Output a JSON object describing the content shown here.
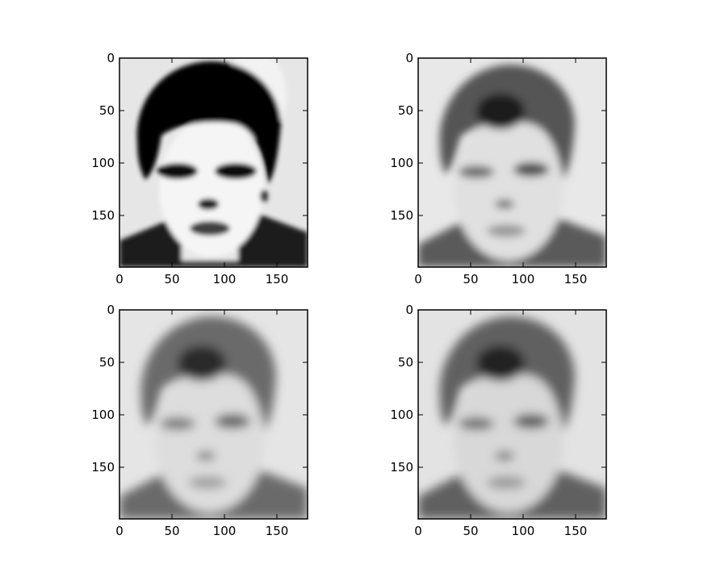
{
  "figure": {
    "background": "#ffffff",
    "panels": [
      {
        "xticks": [
          "0",
          "50",
          "100",
          "150"
        ],
        "yticks": [
          "0",
          "50",
          "100",
          "150"
        ],
        "xlim": [
          0,
          179
        ],
        "ylim": [
          199,
          0
        ],
        "contrast": "high",
        "contents": "grayscale face reconstruction, dark hair, dark eye regions, dark jacket"
      },
      {
        "xticks": [
          "0",
          "50",
          "100",
          "150"
        ],
        "yticks": [
          "0",
          "50",
          "100",
          "150"
        ],
        "xlim": [
          0,
          179
        ],
        "ylim": [
          199,
          0
        ],
        "contrast": "medium",
        "contents": "grayscale face reconstruction, softened"
      },
      {
        "xticks": [
          "0",
          "50",
          "100",
          "150"
        ],
        "yticks": [
          "0",
          "50",
          "100",
          "150"
        ],
        "xlim": [
          0,
          179
        ],
        "ylim": [
          199,
          0
        ],
        "contrast": "low",
        "contents": "grayscale face reconstruction, blurred"
      },
      {
        "xticks": [
          "0",
          "50",
          "100",
          "150"
        ],
        "yticks": [
          "0",
          "50",
          "100",
          "150"
        ],
        "xlim": [
          0,
          179
        ],
        "ylim": [
          199,
          0
        ],
        "contrast": "low",
        "contents": "grayscale face reconstruction, blurred"
      }
    ]
  }
}
